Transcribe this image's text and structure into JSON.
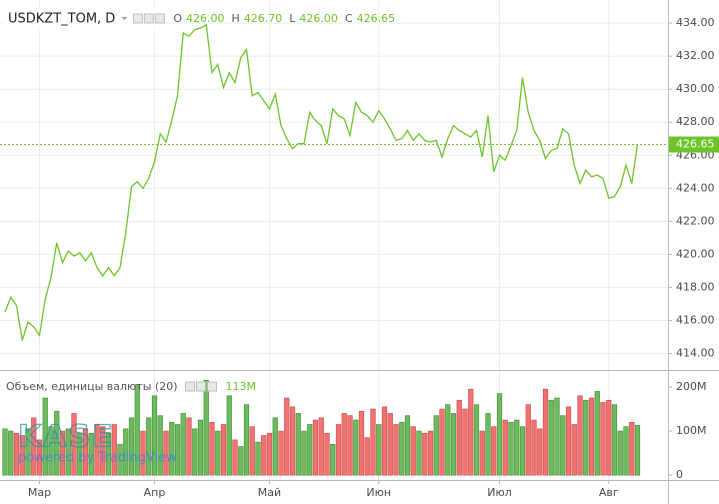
{
  "chart_data": [
    {
      "type": "line",
      "title": "USDKZT_TOM, D",
      "color": "#6cc42a",
      "grid": true,
      "ohlc": [
        {
          "label": "O",
          "value": "426.00"
        },
        {
          "label": "H",
          "value": "426.70"
        },
        {
          "label": "L",
          "value": "426.00"
        },
        {
          "label": "C",
          "value": "426.65"
        }
      ],
      "categories": [
        null,
        null,
        null,
        null,
        null,
        null,
        "Мар",
        null,
        null,
        null,
        null,
        null,
        null,
        null,
        null,
        null,
        null,
        null,
        null,
        null,
        null,
        null,
        null,
        null,
        null,
        null,
        "Апр",
        null,
        null,
        null,
        null,
        null,
        null,
        null,
        null,
        null,
        null,
        null,
        null,
        null,
        null,
        null,
        null,
        null,
        null,
        null,
        "Май",
        null,
        null,
        null,
        null,
        null,
        null,
        null,
        null,
        null,
        null,
        null,
        null,
        null,
        null,
        null,
        null,
        null,
        null,
        "Июн",
        null,
        null,
        null,
        null,
        null,
        null,
        null,
        null,
        null,
        null,
        null,
        null,
        null,
        null,
        null,
        null,
        null,
        null,
        null,
        null,
        "Июл",
        null,
        null,
        null,
        null,
        null,
        null,
        null,
        null,
        null,
        null,
        null,
        null,
        null,
        null,
        null,
        null,
        null,
        null,
        "Авг",
        null,
        null,
        null,
        null,
        null
      ],
      "values": [
        416.5,
        417.4,
        416.9,
        414.8,
        415.9,
        415.6,
        415.1,
        417.3,
        418.6,
        420.7,
        419.5,
        420.2,
        419.9,
        420.1,
        419.6,
        420.1,
        419.2,
        418.7,
        419.2,
        418.7,
        419.2,
        421.3,
        424.1,
        424.4,
        424.0,
        424.6,
        425.6,
        427.3,
        426.8,
        428.1,
        429.6,
        433.4,
        433.2,
        433.6,
        433.7,
        433.9,
        431.0,
        431.5,
        430.1,
        431.0,
        430.4,
        431.9,
        432.4,
        429.6,
        429.8,
        429.3,
        428.8,
        429.7,
        427.8,
        427.0,
        426.4,
        426.7,
        426.7,
        428.6,
        428.1,
        427.8,
        426.7,
        428.8,
        428.4,
        428.2,
        427.2,
        429.2,
        428.6,
        428.4,
        428.0,
        428.7,
        428.2,
        427.6,
        426.9,
        427.0,
        427.5,
        426.9,
        427.3,
        426.9,
        426.8,
        426.9,
        425.9,
        427.0,
        427.8,
        427.5,
        427.3,
        427.1,
        427.5,
        425.9,
        428.4,
        425.0,
        426.0,
        425.7,
        426.6,
        427.5,
        430.7,
        428.6,
        427.5,
        426.9,
        425.8,
        426.3,
        426.4,
        427.6,
        427.3,
        425.4,
        424.3,
        425.1,
        424.7,
        424.8,
        424.6,
        423.4,
        423.5,
        424.1,
        425.4,
        424.3,
        426.65
      ],
      "ylim": [
        413,
        435.4
      ],
      "yticks": [
        {
          "value": 414,
          "label": "414.00"
        },
        {
          "value": 416,
          "label": "416.00"
        },
        {
          "value": 418,
          "label": "418.00"
        },
        {
          "value": 420,
          "label": "420.00"
        },
        {
          "value": 422,
          "label": "422.00"
        },
        {
          "value": 424,
          "label": "424.00"
        },
        {
          "value": 426,
          "label": "426.00"
        },
        {
          "value": 428,
          "label": "428.00"
        },
        {
          "value": 430,
          "label": "430.00"
        },
        {
          "value": 432,
          "label": "432.00"
        },
        {
          "value": 434,
          "label": "434.00"
        }
      ]
    },
    {
      "type": "bar",
      "title": "Объем, единицы валюты (20)",
      "legend_value": "113M",
      "up_color": "#6dbb5c",
      "down_color": "#f27272",
      "values": [
        105,
        100,
        95,
        90,
        105,
        130,
        80,
        175,
        110,
        145,
        100,
        105,
        140,
        95,
        105,
        95,
        115,
        110,
        95,
        115,
        70,
        105,
        130,
        205,
        100,
        130,
        180,
        135,
        100,
        120,
        115,
        140,
        130,
        105,
        125,
        215,
        120,
        100,
        115,
        180,
        80,
        65,
        160,
        110,
        75,
        90,
        95,
        130,
        100,
        175,
        155,
        140,
        100,
        115,
        125,
        130,
        95,
        70,
        115,
        140,
        135,
        125,
        145,
        85,
        150,
        115,
        155,
        140,
        115,
        120,
        135,
        110,
        100,
        95,
        100,
        135,
        150,
        160,
        140,
        170,
        150,
        195,
        160,
        100,
        140,
        110,
        185,
        125,
        120,
        125,
        110,
        160,
        125,
        105,
        195,
        170,
        175,
        135,
        155,
        115,
        180,
        170,
        175,
        190,
        165,
        170,
        160,
        100,
        110,
        120,
        113
      ],
      "ylim": [
        -11,
        234
      ],
      "yticks": [
        0,
        {
          "value": 100,
          "label": "100M"
        },
        {
          "value": 200,
          "label": "200M"
        }
      ]
    }
  ],
  "watermark": {
    "logo": "KASE",
    "text": "powered by TradingView"
  }
}
